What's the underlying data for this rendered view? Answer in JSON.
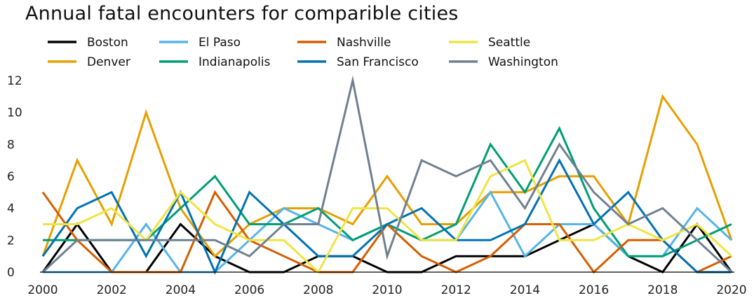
{
  "chart_data": {
    "type": "line",
    "title": "Annual fatal encounters for comparible cities",
    "xlabel": "",
    "ylabel": "",
    "x": [
      2000,
      2001,
      2002,
      2003,
      2004,
      2005,
      2006,
      2007,
      2008,
      2009,
      2010,
      2011,
      2012,
      2013,
      2014,
      2015,
      2016,
      2017,
      2018,
      2019,
      2020
    ],
    "xticks": [
      2000,
      2002,
      2004,
      2006,
      2008,
      2010,
      2012,
      2014,
      2016,
      2018,
      2020
    ],
    "yticks": [
      0,
      2,
      4,
      6,
      8,
      10,
      12
    ],
    "xlim": [
      2000,
      2020
    ],
    "ylim": [
      0,
      12
    ],
    "grid": false,
    "legend_position": "top",
    "series": [
      {
        "name": "Boston",
        "color": "#000000",
        "values": [
          0,
          3,
          0,
          0,
          3,
          1,
          0,
          0,
          1,
          1,
          0,
          0,
          1,
          1,
          1,
          2,
          3,
          1,
          0,
          3,
          0
        ]
      },
      {
        "name": "Denver",
        "color": "#E69F00",
        "values": [
          1,
          7,
          3,
          10,
          4,
          1,
          3,
          4,
          4,
          3,
          6,
          3,
          3,
          5,
          5,
          6,
          6,
          3,
          11,
          8,
          2
        ]
      },
      {
        "name": "El Paso",
        "color": "#56B4E9",
        "values": [
          0,
          0,
          0,
          3,
          0,
          0,
          2,
          4,
          3,
          2,
          3,
          2,
          2,
          5,
          1,
          3,
          3,
          1,
          1,
          4,
          2
        ]
      },
      {
        "name": "Indianapolis",
        "color": "#009E73",
        "values": [
          2,
          2,
          2,
          2,
          4,
          6,
          3,
          3,
          4,
          2,
          3,
          2,
          3,
          8,
          5,
          9,
          4,
          1,
          1,
          2,
          3
        ]
      },
      {
        "name": "Nashville",
        "color": "#D55E00",
        "values": [
          5,
          2,
          0,
          0,
          0,
          5,
          2,
          1,
          0,
          0,
          3,
          1,
          0,
          1,
          3,
          3,
          0,
          2,
          2,
          0,
          1
        ]
      },
      {
        "name": "San Francisco",
        "color": "#0072B2",
        "values": [
          1,
          4,
          5,
          1,
          5,
          0,
          5,
          3,
          1,
          1,
          3,
          4,
          2,
          2,
          3,
          7,
          3,
          5,
          2,
          0,
          0
        ]
      },
      {
        "name": "Seattle",
        "color": "#F0E442",
        "values": [
          3,
          3,
          4,
          2,
          5,
          3,
          2,
          2,
          0,
          4,
          4,
          2,
          2,
          6,
          7,
          2,
          2,
          3,
          2,
          3,
          1
        ]
      },
      {
        "name": "Washington",
        "color": "#708090",
        "values": [
          0,
          2,
          2,
          2,
          2,
          2,
          1,
          3,
          3,
          12,
          1,
          7,
          6,
          7,
          4,
          8,
          5,
          3,
          4,
          2,
          0
        ]
      }
    ]
  }
}
